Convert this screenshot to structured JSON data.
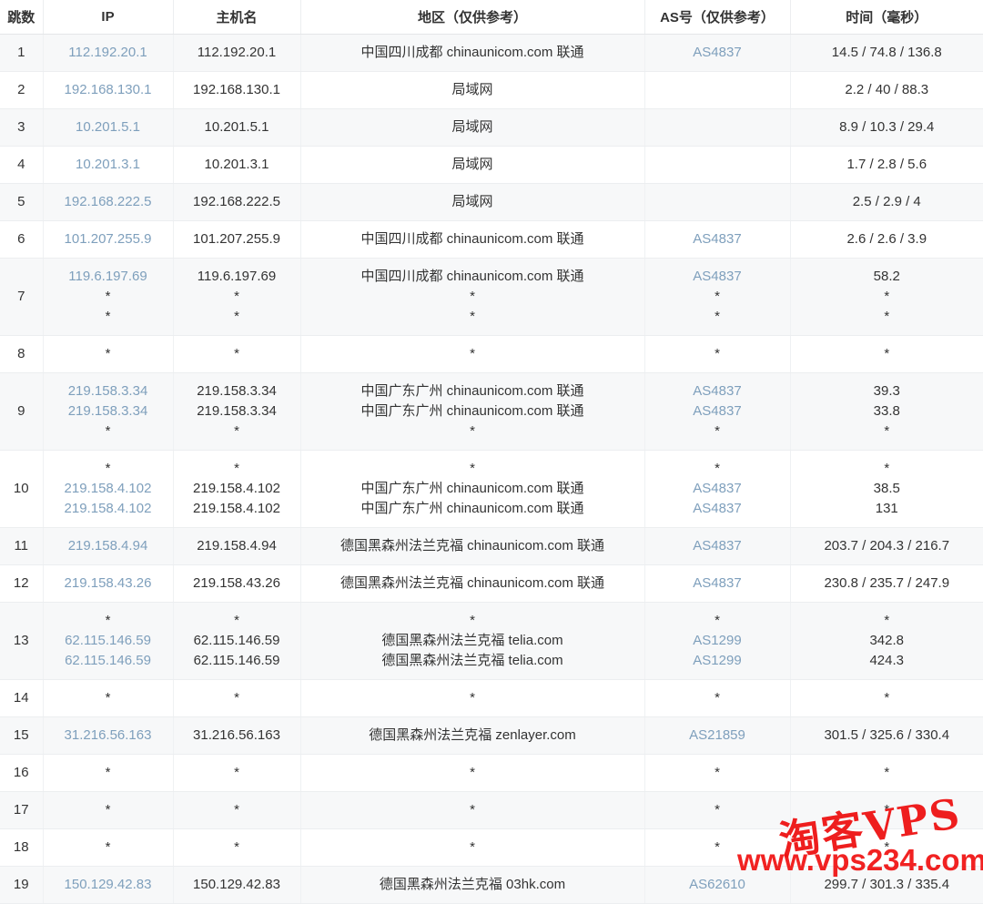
{
  "table": {
    "columns": [
      "跳数",
      "IP",
      "主机名",
      "地区（仅供参考）",
      "AS号（仅供参考）",
      "时间（毫秒）"
    ],
    "rows": [
      {
        "hop": "1",
        "ip": [
          "112.192.20.1"
        ],
        "host": [
          "112.192.20.1"
        ],
        "region": [
          "中国四川成都 chinaunicom.com 联通"
        ],
        "asn": [
          "AS4837"
        ],
        "time": [
          "14.5 / 74.8 / 136.8"
        ]
      },
      {
        "hop": "2",
        "ip": [
          "192.168.130.1"
        ],
        "host": [
          "192.168.130.1"
        ],
        "region": [
          "局域网"
        ],
        "asn": [
          ""
        ],
        "time": [
          "2.2 / 40 / 88.3"
        ]
      },
      {
        "hop": "3",
        "ip": [
          "10.201.5.1"
        ],
        "host": [
          "10.201.5.1"
        ],
        "region": [
          "局域网"
        ],
        "asn": [
          ""
        ],
        "time": [
          "8.9 / 10.3 / 29.4"
        ]
      },
      {
        "hop": "4",
        "ip": [
          "10.201.3.1"
        ],
        "host": [
          "10.201.3.1"
        ],
        "region": [
          "局域网"
        ],
        "asn": [
          ""
        ],
        "time": [
          "1.7 / 2.8 / 5.6"
        ]
      },
      {
        "hop": "5",
        "ip": [
          "192.168.222.5"
        ],
        "host": [
          "192.168.222.5"
        ],
        "region": [
          "局域网"
        ],
        "asn": [
          ""
        ],
        "time": [
          "2.5 / 2.9 / 4"
        ]
      },
      {
        "hop": "6",
        "ip": [
          "101.207.255.9"
        ],
        "host": [
          "101.207.255.9"
        ],
        "region": [
          "中国四川成都 chinaunicom.com 联通"
        ],
        "asn": [
          "AS4837"
        ],
        "time": [
          "2.6 / 2.6 / 3.9"
        ]
      },
      {
        "hop": "7",
        "ip": [
          "119.6.197.69",
          "*",
          "*"
        ],
        "host": [
          "119.6.197.69",
          "*",
          "*"
        ],
        "region": [
          "中国四川成都 chinaunicom.com 联通",
          "*",
          "*"
        ],
        "asn": [
          "AS4837",
          "*",
          "*"
        ],
        "time": [
          "58.2",
          "*",
          "*"
        ]
      },
      {
        "hop": "8",
        "ip": [
          "*"
        ],
        "host": [
          "*"
        ],
        "region": [
          "*"
        ],
        "asn": [
          "*"
        ],
        "time": [
          "*"
        ]
      },
      {
        "hop": "9",
        "ip": [
          "219.158.3.34",
          "219.158.3.34",
          "*"
        ],
        "host": [
          "219.158.3.34",
          "219.158.3.34",
          "*"
        ],
        "region": [
          "中国广东广州 chinaunicom.com 联通",
          "中国广东广州 chinaunicom.com 联通",
          "*"
        ],
        "asn": [
          "AS4837",
          "AS4837",
          "*"
        ],
        "time": [
          "39.3",
          "33.8",
          "*"
        ]
      },
      {
        "hop": "10",
        "ip": [
          "*",
          "219.158.4.102",
          "219.158.4.102"
        ],
        "host": [
          "*",
          "219.158.4.102",
          "219.158.4.102"
        ],
        "region": [
          "*",
          "中国广东广州 chinaunicom.com 联通",
          "中国广东广州 chinaunicom.com 联通"
        ],
        "asn": [
          "*",
          "AS4837",
          "AS4837"
        ],
        "time": [
          "*",
          "38.5",
          "131"
        ]
      },
      {
        "hop": "11",
        "ip": [
          "219.158.4.94"
        ],
        "host": [
          "219.158.4.94"
        ],
        "region": [
          "德国黑森州法兰克福 chinaunicom.com 联通"
        ],
        "asn": [
          "AS4837"
        ],
        "time": [
          "203.7 / 204.3 / 216.7"
        ]
      },
      {
        "hop": "12",
        "ip": [
          "219.158.43.26"
        ],
        "host": [
          "219.158.43.26"
        ],
        "region": [
          "德国黑森州法兰克福 chinaunicom.com 联通"
        ],
        "asn": [
          "AS4837"
        ],
        "time": [
          "230.8 / 235.7 / 247.9"
        ]
      },
      {
        "hop": "13",
        "ip": [
          "*",
          "62.115.146.59",
          "62.115.146.59"
        ],
        "host": [
          "*",
          "62.115.146.59",
          "62.115.146.59"
        ],
        "region": [
          "*",
          "德国黑森州法兰克福 telia.com",
          "德国黑森州法兰克福 telia.com"
        ],
        "asn": [
          "*",
          "AS1299",
          "AS1299"
        ],
        "time": [
          "*",
          "342.8",
          "424.3"
        ]
      },
      {
        "hop": "14",
        "ip": [
          "*"
        ],
        "host": [
          "*"
        ],
        "region": [
          "*"
        ],
        "asn": [
          "*"
        ],
        "time": [
          "*"
        ]
      },
      {
        "hop": "15",
        "ip": [
          "31.216.56.163"
        ],
        "host": [
          "31.216.56.163"
        ],
        "region": [
          "德国黑森州法兰克福 zenlayer.com"
        ],
        "asn": [
          "AS21859"
        ],
        "time": [
          "301.5 / 325.6 / 330.4"
        ]
      },
      {
        "hop": "16",
        "ip": [
          "*"
        ],
        "host": [
          "*"
        ],
        "region": [
          "*"
        ],
        "asn": [
          "*"
        ],
        "time": [
          "*"
        ]
      },
      {
        "hop": "17",
        "ip": [
          "*"
        ],
        "host": [
          "*"
        ],
        "region": [
          "*"
        ],
        "asn": [
          "*"
        ],
        "time": [
          "*"
        ]
      },
      {
        "hop": "18",
        "ip": [
          "*"
        ],
        "host": [
          "*"
        ],
        "region": [
          "*"
        ],
        "asn": [
          "*"
        ],
        "time": [
          "*"
        ]
      },
      {
        "hop": "19",
        "ip": [
          "150.129.42.83"
        ],
        "host": [
          "150.129.42.83"
        ],
        "region": [
          "德国黑森州法兰克福 03hk.com"
        ],
        "asn": [
          "AS62610"
        ],
        "time": [
          "299.7 / 301.3 / 335.4"
        ]
      }
    ]
  },
  "watermark": {
    "brand": "淘客VPS",
    "site": "www.vps234.com",
    "color": "#ee1313"
  },
  "colors": {
    "link": "#7e9fbc",
    "text": "#333333",
    "stripe": "#f7f8f9",
    "border": "#eceef0"
  }
}
